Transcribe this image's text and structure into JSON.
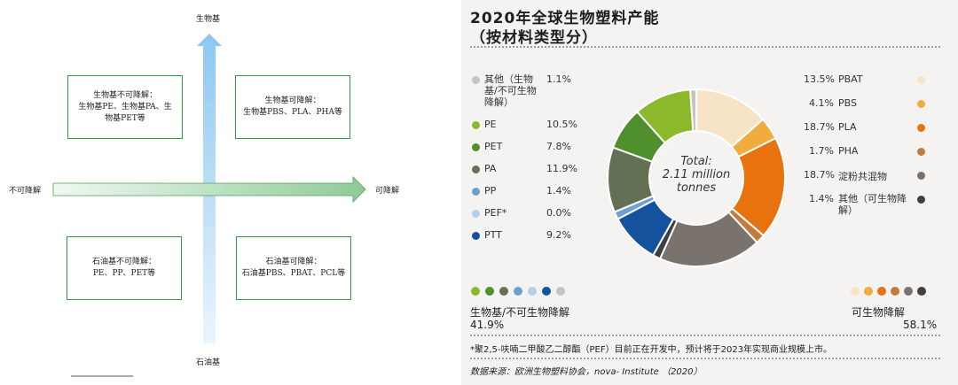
{
  "quadrant": {
    "top_axis": "生物基",
    "bottom_axis": "石油基",
    "left_axis": "不可降解",
    "right_axis": "可降解",
    "boxes": [
      {
        "title": "生物基不可降解：",
        "lines": [
          "生物基PE、生物基PA、生",
          "物基PET等"
        ]
      },
      {
        "title": "生物基可降解：",
        "lines": [
          "生物基PBS、PLA、PHA等"
        ]
      },
      {
        "title": "石油基不可降解：",
        "lines": [
          "PE、PP、PET等"
        ]
      },
      {
        "title": "石油基可降解：",
        "lines": [
          "石油基PBS、PBAT、PCL等"
        ]
      }
    ]
  },
  "infographic": {
    "title_line1": "2020年全球生物塑料产能",
    "title_line2": "（按材料类型分）",
    "total_line1": "Total:",
    "total_line2": "2.11 million",
    "total_line3": "tonnes",
    "group_left_label": "生物基/不可生物降解",
    "group_left_value": "41.9%",
    "group_right_label": "可生物降解",
    "group_right_value": "58.1%",
    "footnote": "*聚2,5-呋喃二甲酸乙二醇酯（PEF）目前正在开发中，预计将于2023年实现商业规模上市。",
    "source": "数据来源：欧洲生物塑料协会，nova- Institute （2020）"
  },
  "chart_data": {
    "type": "pie",
    "title": "2020年全球生物塑料产能（按材料类型分）",
    "unit": "%",
    "slices": [
      {
        "label": "PBAT",
        "value": 13.5,
        "value_label": "13.5%",
        "color": "#f7e3c6",
        "group": "biodegradable"
      },
      {
        "label": "PBS",
        "value": 4.1,
        "value_label": "4.1%",
        "color": "#f0ac3c",
        "group": "biodegradable"
      },
      {
        "label": "PLA",
        "value": 18.7,
        "value_label": "18.7%",
        "color": "#e8720e",
        "group": "biodegradable"
      },
      {
        "label": "PHA",
        "value": 1.7,
        "value_label": "1.7%",
        "color": "#c07c3e",
        "group": "biodegradable"
      },
      {
        "label": "淀粉共混物",
        "value": 18.7,
        "value_label": "18.7%",
        "color": "#7a726c",
        "group": "biodegradable"
      },
      {
        "label": "其他（可生物降解）",
        "value": 1.4,
        "value_label": "1.4%",
        "color": "#3f3f3f",
        "group": "biodegradable"
      },
      {
        "label": "PTT",
        "value": 9.2,
        "value_label": "9.2%",
        "color": "#14529e",
        "group": "bio-based"
      },
      {
        "label": "PEF*",
        "value": 0.0,
        "value_label": "0.0%",
        "color": "#b5cfe8",
        "group": "bio-based"
      },
      {
        "label": "PP",
        "value": 1.4,
        "value_label": "1.4%",
        "color": "#6aa0d4",
        "group": "bio-based"
      },
      {
        "label": "PA",
        "value": 11.9,
        "value_label": "11.9%",
        "color": "#647056",
        "group": "bio-based"
      },
      {
        "label": "PET",
        "value": 7.8,
        "value_label": "7.8%",
        "color": "#4f8f2c",
        "group": "bio-based"
      },
      {
        "label": "PE",
        "value": 10.5,
        "value_label": "10.5%",
        "color": "#8cb82c",
        "group": "bio-based"
      },
      {
        "label": "其他（生物基/不可生物降解）",
        "value": 1.1,
        "value_label": "1.1%",
        "color": "#c4c4c4",
        "group": "bio-based"
      }
    ],
    "legend_left": [
      {
        "label": "其他（生物基/不可生物降解）",
        "value_label": "1.1%",
        "color": "#c4c4c4"
      },
      {
        "label": "PE",
        "value_label": "10.5%",
        "color": "#8cb82c"
      },
      {
        "label": "PET",
        "value_label": "7.8%",
        "color": "#4f8f2c"
      },
      {
        "label": "PA",
        "value_label": "11.9%",
        "color": "#647056"
      },
      {
        "label": "PP",
        "value_label": "1.4%",
        "color": "#6aa0d4"
      },
      {
        "label": "PEF*",
        "value_label": "0.0%",
        "color": "#b5cfe8"
      },
      {
        "label": "PTT",
        "value_label": "9.2%",
        "color": "#14529e"
      }
    ],
    "legend_right": [
      {
        "label": "PBAT",
        "value_label": "13.5%",
        "color": "#f7e3c6"
      },
      {
        "label": "PBS",
        "value_label": "4.1%",
        "color": "#f0ac3c"
      },
      {
        "label": "PLA",
        "value_label": "18.7%",
        "color": "#e8720e"
      },
      {
        "label": "PHA",
        "value_label": "1.7%",
        "color": "#c07c3e"
      },
      {
        "label": "淀粉共混物",
        "value_label": "18.7%",
        "color": "#7a726c"
      },
      {
        "label": "其他（可生物降解）",
        "value_label": "1.4%",
        "color": "#3f3f3f"
      }
    ]
  }
}
